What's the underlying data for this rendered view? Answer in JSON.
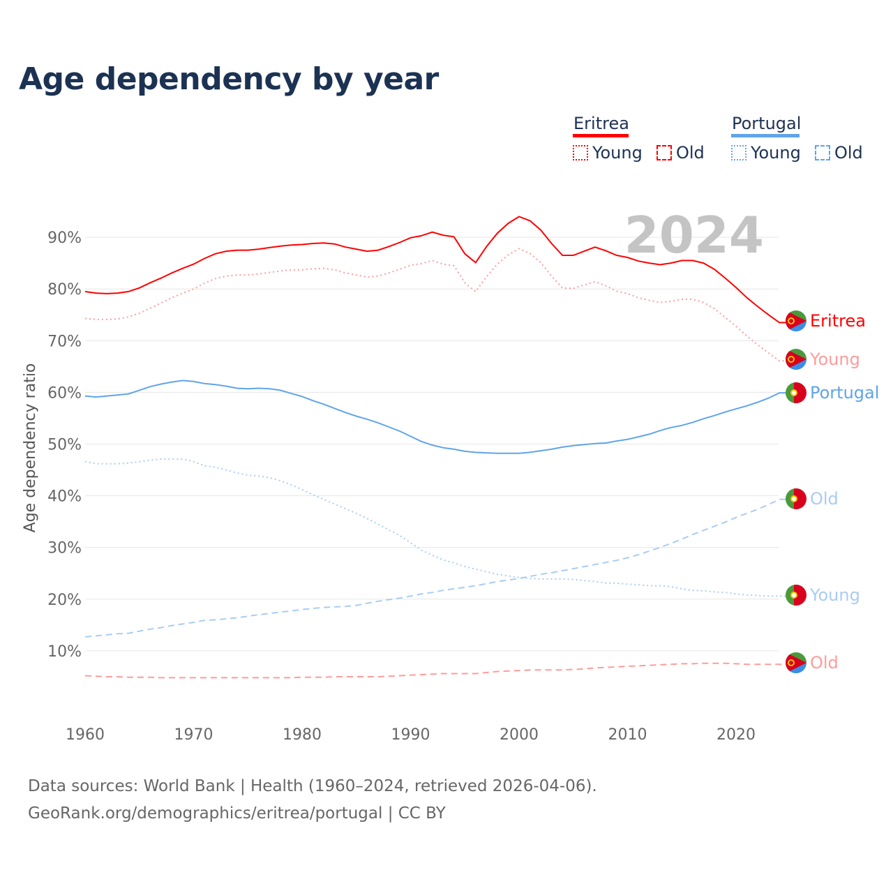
{
  "title": "Age dependency by year",
  "legend": {
    "groups": [
      {
        "country": "Eritrea",
        "color": "#ff0000",
        "light": "#ff9b9b",
        "items": [
          "Young",
          "Old"
        ]
      },
      {
        "country": "Portugal",
        "color": "#5fa4ea",
        "light": "#a9ccf2",
        "items": [
          "Young",
          "Old"
        ]
      }
    ]
  },
  "source": {
    "line1": "Data sources: World Bank | Health (1960–2024, retrieved 2026-04-06).",
    "line2": "GeoRank.org/demographics/eritrea/portugal | CC BY"
  },
  "chart_data": {
    "type": "line",
    "title": "Age dependency by year",
    "ylabel": "Age dependency ratio",
    "xlabel": "",
    "year_label": "2024",
    "xlim": [
      1960,
      2024
    ],
    "ylim": [
      0,
      95
    ],
    "x_ticks": [
      1960,
      1970,
      1980,
      1990,
      2000,
      2010,
      2020
    ],
    "y_ticks": [
      10,
      20,
      30,
      40,
      50,
      60,
      70,
      80,
      90
    ],
    "y_tick_labels": [
      "10%",
      "20%",
      "30%",
      "40%",
      "50%",
      "60%",
      "70%",
      "80%",
      "90%"
    ],
    "grid": true,
    "x_start": 1960,
    "series": [
      {
        "name": "Eritrea",
        "end_label": "Eritrea",
        "country": "Eritrea",
        "style": "solid",
        "color": "#ff0000",
        "values": [
          79.5,
          79.2,
          79.1,
          79.2,
          79.5,
          80.2,
          81.2,
          82.1,
          83.1,
          84.0,
          84.8,
          85.9,
          86.8,
          87.3,
          87.5,
          87.5,
          87.7,
          88.0,
          88.3,
          88.5,
          88.6,
          88.8,
          88.9,
          88.7,
          88.1,
          87.7,
          87.3,
          87.5,
          88.2,
          89.0,
          89.9,
          90.3,
          91.0,
          90.4,
          90.1,
          86.8,
          85.1,
          88.2,
          90.8,
          92.7,
          94.0,
          93.2,
          91.4,
          88.8,
          86.5,
          86.5,
          87.3,
          88.1,
          87.4,
          86.5,
          86.1,
          85.4,
          85.0,
          84.7,
          85.0,
          85.5,
          85.5,
          85.0,
          83.8,
          82.1,
          80.3,
          78.3,
          76.6,
          75.0,
          73.5
        ]
      },
      {
        "name": "Eritrea Young",
        "end_label": "Young",
        "country": "Eritrea",
        "style": "dotted",
        "color": "#ff9b9b",
        "values": [
          74.3,
          74.1,
          74.1,
          74.2,
          74.6,
          75.3,
          76.3,
          77.3,
          78.3,
          79.2,
          80.0,
          81.1,
          82.0,
          82.5,
          82.7,
          82.7,
          82.9,
          83.2,
          83.5,
          83.7,
          83.7,
          83.9,
          84.0,
          83.7,
          83.1,
          82.7,
          82.3,
          82.5,
          83.1,
          83.8,
          84.6,
          84.9,
          85.5,
          84.8,
          84.5,
          81.2,
          79.5,
          82.4,
          84.8,
          86.6,
          87.8,
          86.9,
          85.1,
          82.5,
          80.2,
          80.1,
          80.8,
          81.4,
          80.6,
          79.6,
          79.1,
          78.3,
          77.8,
          77.4,
          77.6,
          78.0,
          78.0,
          77.4,
          76.2,
          74.5,
          72.8,
          70.9,
          69.2,
          67.6,
          66.1
        ]
      },
      {
        "name": "Eritrea Old",
        "end_label": "Old",
        "country": "Eritrea",
        "style": "dashed",
        "color": "#ff9b9b",
        "values": [
          5.2,
          5.1,
          5.0,
          5.0,
          4.9,
          4.9,
          4.9,
          4.8,
          4.8,
          4.8,
          4.8,
          4.8,
          4.8,
          4.8,
          4.8,
          4.8,
          4.8,
          4.8,
          4.8,
          4.8,
          4.9,
          4.9,
          4.9,
          5.0,
          5.0,
          5.0,
          5.0,
          5.0,
          5.1,
          5.2,
          5.3,
          5.4,
          5.5,
          5.6,
          5.6,
          5.6,
          5.6,
          5.8,
          6.0,
          6.1,
          6.2,
          6.3,
          6.3,
          6.3,
          6.3,
          6.4,
          6.5,
          6.7,
          6.8,
          6.9,
          7.0,
          7.1,
          7.2,
          7.3,
          7.4,
          7.5,
          7.5,
          7.6,
          7.6,
          7.6,
          7.5,
          7.4,
          7.4,
          7.4,
          7.4
        ]
      },
      {
        "name": "Portugal",
        "end_label": "Portugal",
        "country": "Portugal",
        "style": "solid",
        "color": "#5fa4ea",
        "values": [
          59.3,
          59.1,
          59.3,
          59.5,
          59.7,
          60.4,
          61.1,
          61.6,
          62.0,
          62.3,
          62.1,
          61.7,
          61.5,
          61.2,
          60.8,
          60.7,
          60.8,
          60.7,
          60.4,
          59.8,
          59.2,
          58.4,
          57.7,
          56.9,
          56.1,
          55.4,
          54.8,
          54.1,
          53.3,
          52.5,
          51.5,
          50.5,
          49.8,
          49.3,
          49.0,
          48.6,
          48.4,
          48.3,
          48.2,
          48.2,
          48.2,
          48.4,
          48.7,
          49.0,
          49.4,
          49.7,
          49.9,
          50.1,
          50.2,
          50.6,
          50.9,
          51.4,
          51.9,
          52.6,
          53.2,
          53.6,
          54.2,
          54.9,
          55.5,
          56.2,
          56.8,
          57.4,
          58.1,
          58.9,
          59.9
        ]
      },
      {
        "name": "Portugal Old",
        "end_label": "Old",
        "country": "Portugal",
        "style": "dashed",
        "color": "#a9ccf2",
        "values": [
          12.7,
          12.9,
          13.1,
          13.3,
          13.4,
          13.8,
          14.2,
          14.5,
          14.9,
          15.2,
          15.5,
          15.9,
          16.0,
          16.2,
          16.4,
          16.7,
          17.0,
          17.2,
          17.5,
          17.7,
          18.0,
          18.2,
          18.4,
          18.5,
          18.6,
          18.8,
          19.2,
          19.6,
          19.9,
          20.2,
          20.6,
          21.0,
          21.3,
          21.7,
          22.0,
          22.3,
          22.6,
          23.0,
          23.4,
          23.7,
          24.0,
          24.4,
          24.8,
          25.1,
          25.5,
          25.9,
          26.3,
          26.7,
          27.1,
          27.5,
          28.0,
          28.6,
          29.3,
          30.0,
          30.8,
          31.6,
          32.5,
          33.3,
          34.1,
          34.9,
          35.8,
          36.6,
          37.4,
          38.3,
          39.3
        ]
      },
      {
        "name": "Portugal Young",
        "end_label": "Young",
        "country": "Portugal",
        "style": "dotted",
        "color": "#a9ccf2",
        "values": [
          46.6,
          46.2,
          46.2,
          46.2,
          46.3,
          46.6,
          46.9,
          47.1,
          47.1,
          47.1,
          46.6,
          45.8,
          45.5,
          45.0,
          44.4,
          44.0,
          43.8,
          43.5,
          42.9,
          42.1,
          41.2,
          40.2,
          39.3,
          38.4,
          37.5,
          36.6,
          35.6,
          34.5,
          33.4,
          32.3,
          30.9,
          29.5,
          28.5,
          27.6,
          27.0,
          26.3,
          25.8,
          25.3,
          24.8,
          24.5,
          24.2,
          24.0,
          23.9,
          23.9,
          23.9,
          23.8,
          23.6,
          23.4,
          23.1,
          23.1,
          22.9,
          22.8,
          22.6,
          22.6,
          22.4,
          22.0,
          21.7,
          21.6,
          21.4,
          21.3,
          21.0,
          20.8,
          20.7,
          20.6,
          20.6
        ]
      }
    ]
  }
}
